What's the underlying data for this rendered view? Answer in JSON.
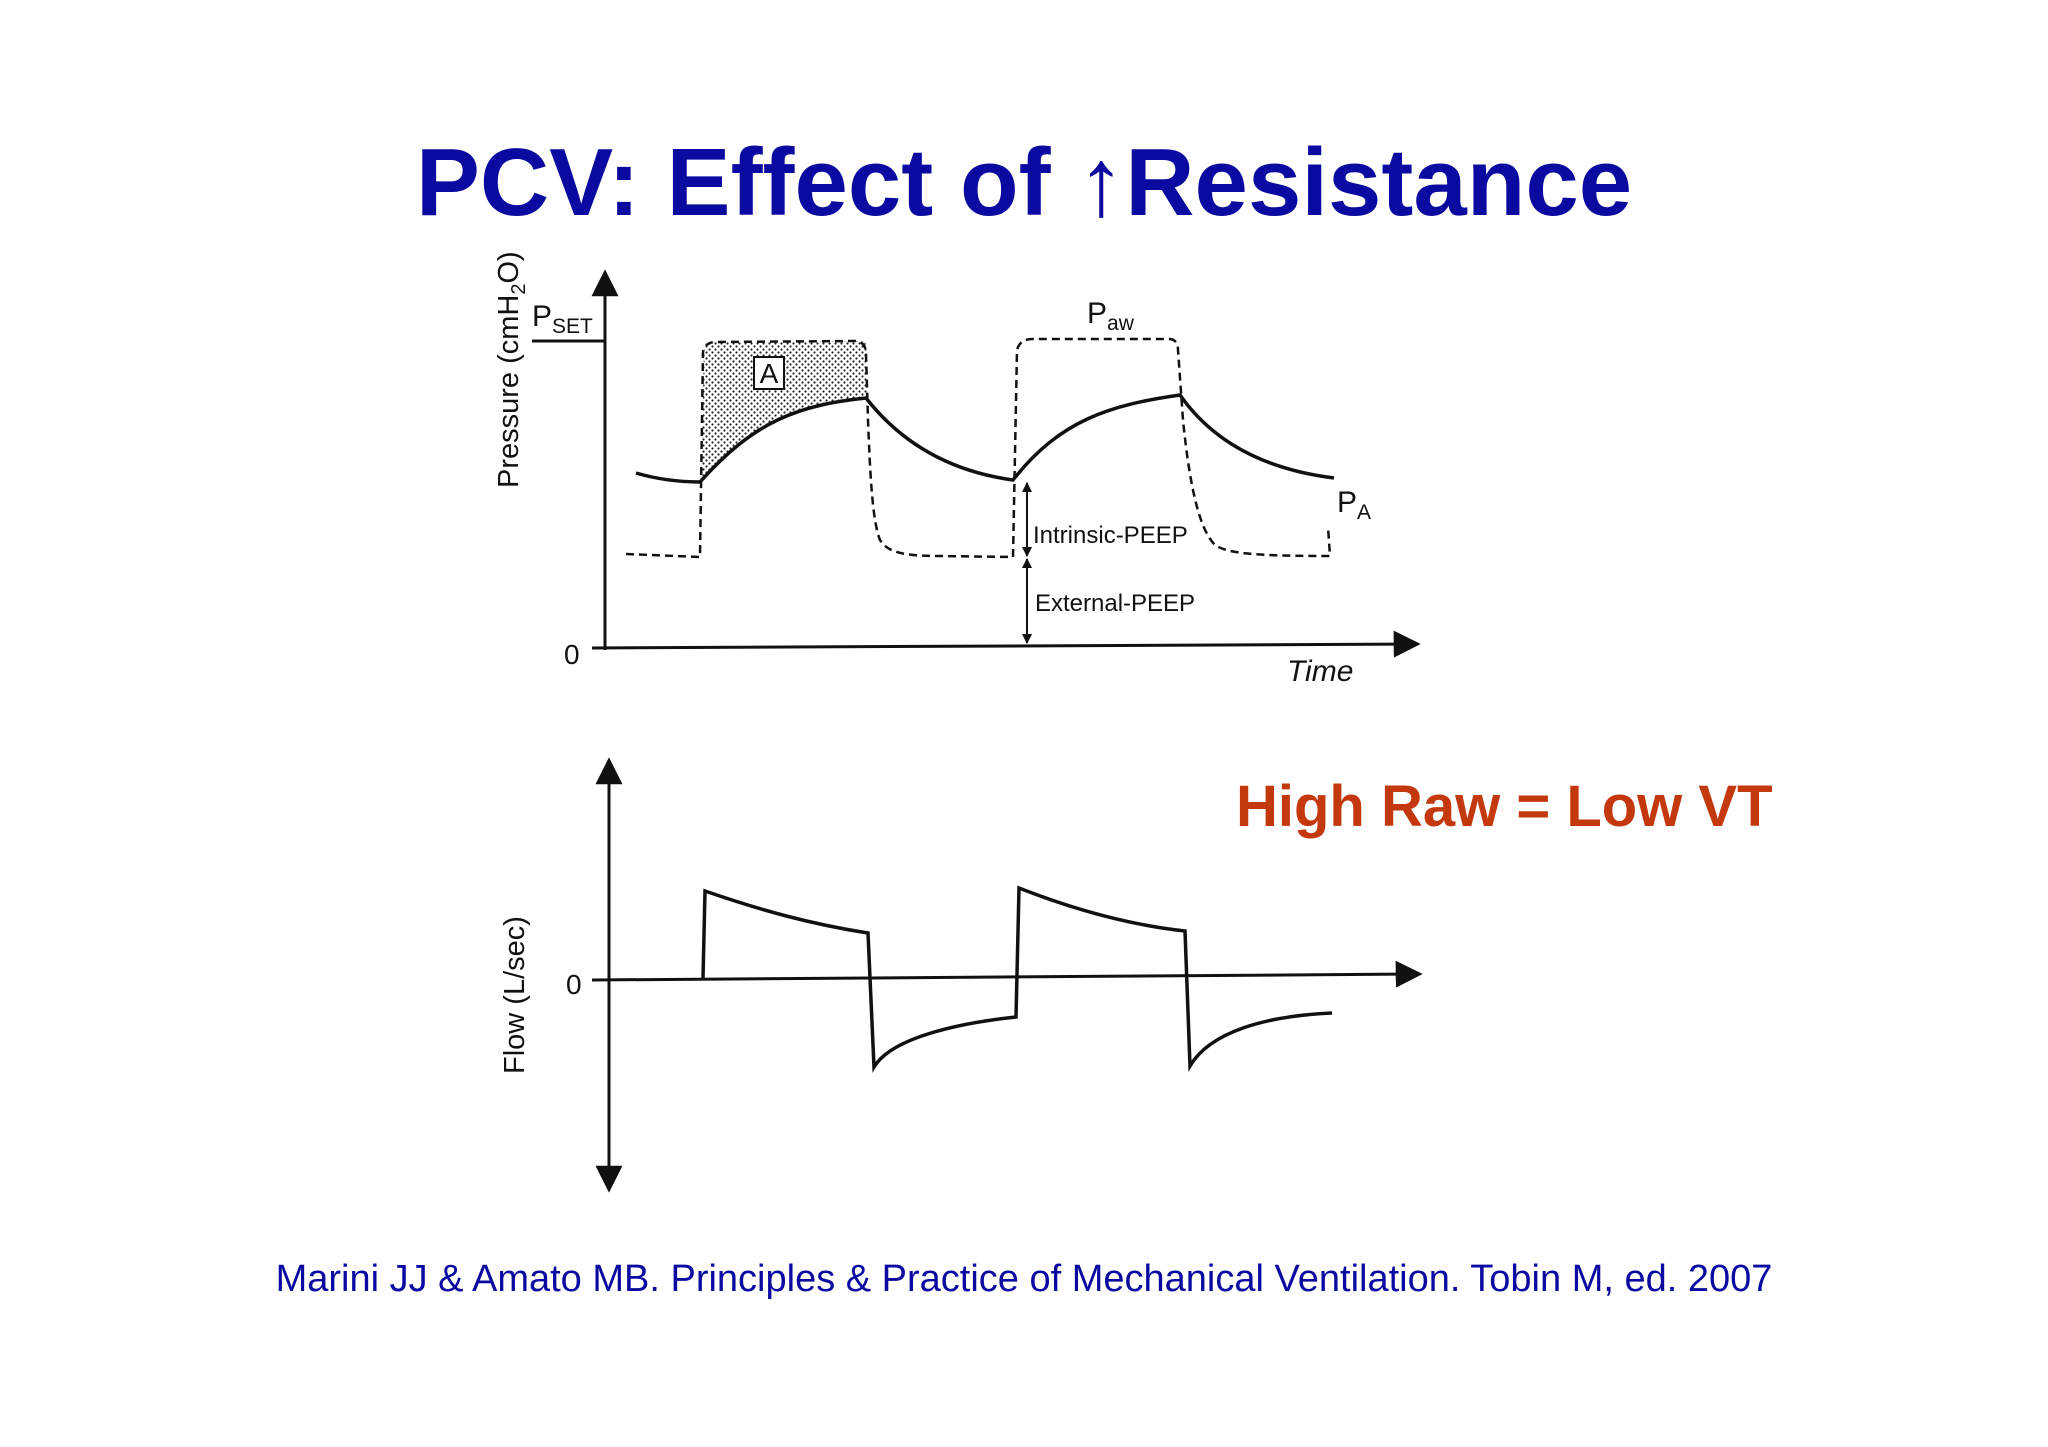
{
  "slide": {
    "title_prefix": "PCV: Effect of ",
    "title_arrow": "↑",
    "title_suffix": "Resistance",
    "conclusion": "High Raw = Low VT",
    "citation": "Marini JJ & Amato MB. Principles & Practice of Mechanical Ventilation. Tobin M, ed. 2007"
  },
  "pressure_panel": {
    "y_label_pre": "Pressure (cmH",
    "y_label_sub": "2",
    "y_label_post": "O)",
    "pset_main": "P",
    "pset_sub": "SET",
    "zero_label": "0",
    "x_label": "Time",
    "area_box_label": "A",
    "paw_main": "P",
    "paw_sub": "aw",
    "pa_main": "P",
    "pa_sub": "A",
    "intrinsic_peep_label": "Intrinsic-PEEP",
    "external_peep_label": "External-PEEP"
  },
  "flow_panel": {
    "y_label": "Flow (L/sec)",
    "zero_label": "0"
  },
  "colors": {
    "title": "#0a0aa0",
    "conclusion": "#c4380e",
    "citation": "#0a0aa0",
    "line": "#111111"
  }
}
